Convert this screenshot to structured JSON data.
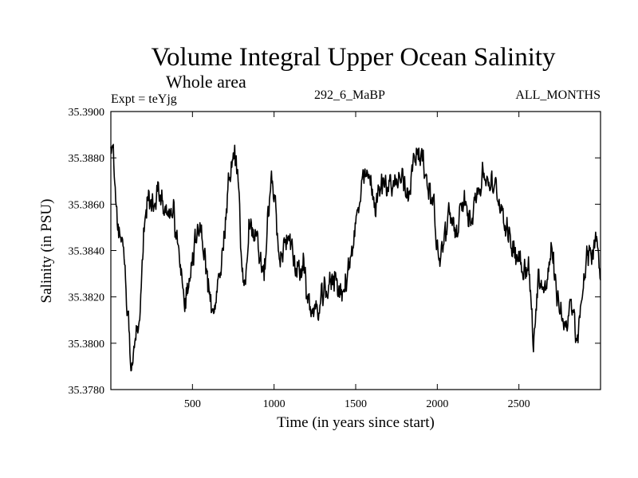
{
  "chart_data": {
    "type": "line",
    "title": "Volume Integral Upper Ocean Salinity",
    "subtitle": "Whole area",
    "expt_label": "Expt = teYjg",
    "run_label": "292_6_MaBP",
    "months_label": "ALL_MONTHS",
    "xlabel": "Time (in years since start)",
    "ylabel": "Salinity (in PSU)",
    "xlim": [
      0,
      3000
    ],
    "ylim": [
      35.378,
      35.39
    ],
    "xticks": [
      500,
      1000,
      1500,
      2000,
      2500
    ],
    "xtick_labels": [
      "500",
      "1000",
      "1500",
      "2000",
      "2500"
    ],
    "yticks": [
      35.378,
      35.38,
      35.382,
      35.384,
      35.386,
      35.388,
      35.39
    ],
    "ytick_labels": [
      "35.3780",
      "35.3800",
      "35.3820",
      "35.3840",
      "35.3860",
      "35.3880",
      "35.3900"
    ],
    "grid": false,
    "series": [
      {
        "name": "salinity",
        "x": [
          0,
          20,
          40,
          60,
          80,
          100,
          120,
          150,
          180,
          200,
          230,
          260,
          300,
          340,
          380,
          420,
          450,
          480,
          520,
          560,
          600,
          630,
          660,
          700,
          730,
          760,
          780,
          800,
          820,
          850,
          880,
          910,
          940,
          980,
          1000,
          1030,
          1060,
          1090,
          1120,
          1150,
          1180,
          1200,
          1230,
          1260,
          1300,
          1340,
          1380,
          1420,
          1460,
          1500,
          1540,
          1580,
          1620,
          1660,
          1700,
          1740,
          1780,
          1820,
          1860,
          1880,
          1900,
          1940,
          1980,
          2010,
          2040,
          2080,
          2120,
          2160,
          2200,
          2240,
          2280,
          2320,
          2360,
          2400,
          2440,
          2480,
          2520,
          2560,
          2590,
          2620,
          2660,
          2700,
          2740,
          2780,
          2820,
          2860,
          2900,
          2940,
          2980,
          3000
        ],
        "values": [
          35.3888,
          35.3875,
          35.3855,
          35.3845,
          35.3842,
          35.3815,
          35.3795,
          35.38,
          35.3815,
          35.385,
          35.3862,
          35.3858,
          35.3866,
          35.3855,
          35.386,
          35.3835,
          35.3815,
          35.383,
          35.3845,
          35.3848,
          35.3822,
          35.3808,
          35.383,
          35.385,
          35.3875,
          35.388,
          35.387,
          35.3835,
          35.3822,
          35.3855,
          35.3845,
          35.3838,
          35.383,
          35.387,
          35.3865,
          35.3835,
          35.384,
          35.385,
          35.3835,
          35.383,
          35.3835,
          35.382,
          35.3815,
          35.3812,
          35.382,
          35.3825,
          35.383,
          35.3818,
          35.3835,
          35.385,
          35.3868,
          35.3872,
          35.386,
          35.3868,
          35.387,
          35.3868,
          35.3872,
          35.3865,
          35.388,
          35.3887,
          35.388,
          35.387,
          35.386,
          35.3832,
          35.3845,
          35.3855,
          35.3848,
          35.386,
          35.3855,
          35.3865,
          35.3872,
          35.387,
          35.3865,
          35.3858,
          35.3845,
          35.384,
          35.3835,
          35.3832,
          35.38,
          35.383,
          35.3822,
          35.384,
          35.3818,
          35.3808,
          35.3815,
          35.38,
          35.383,
          35.384,
          35.3845,
          35.3825
        ]
      }
    ]
  }
}
